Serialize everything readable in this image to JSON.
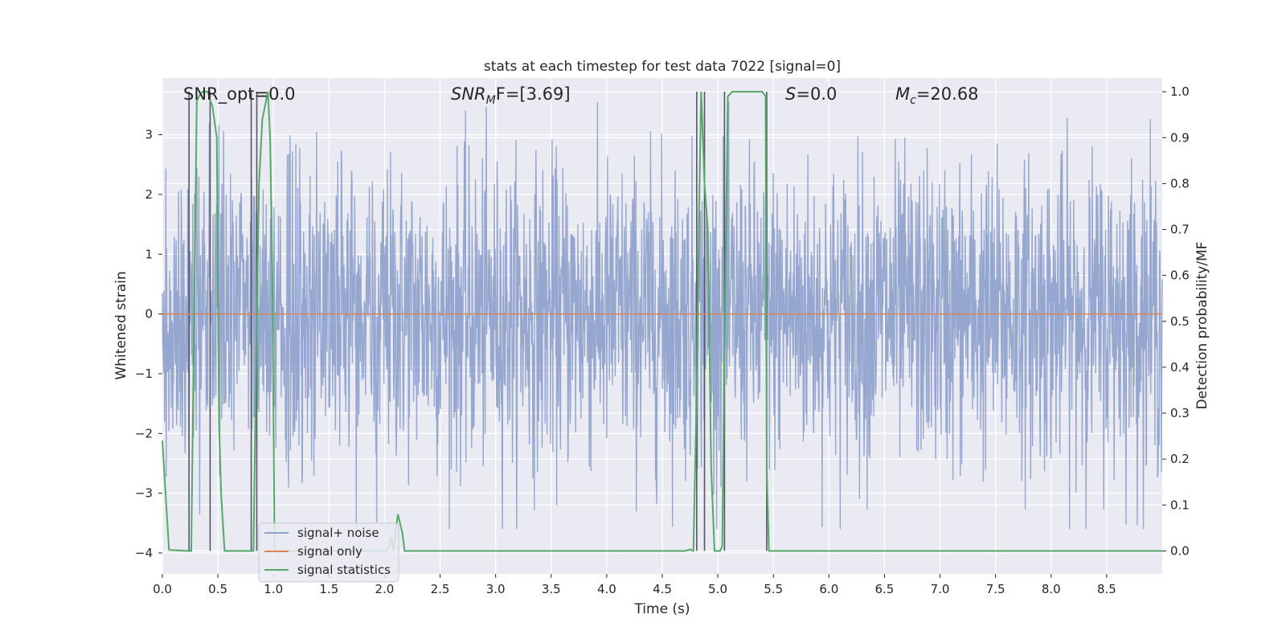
{
  "chart_data": {
    "type": "line",
    "title": "stats at each timestep for test data 7022 [signal=0]",
    "xlabel": "Time (s)",
    "ylabel": "Whitened strain",
    "y2label": "Detection probability/MF",
    "xlim": [
      0.0,
      9.0
    ],
    "ylim": [
      -4.35,
      3.95
    ],
    "y2lim": [
      -0.05,
      1.03
    ],
    "xticks": [
      "0.0",
      "0.5",
      "1.0",
      "1.5",
      "2.0",
      "2.5",
      "3.0",
      "3.5",
      "4.0",
      "4.5",
      "5.0",
      "5.5",
      "6.0",
      "6.5",
      "7.0",
      "7.5",
      "8.0",
      "8.5"
    ],
    "yticks": [
      "3",
      "2",
      "1",
      "0",
      "−1",
      "−2",
      "−3",
      "−4"
    ],
    "y2ticks": [
      "1.0",
      "0.9",
      "0.8",
      "0.7",
      "0.6",
      "0.5",
      "0.4",
      "0.3",
      "0.2",
      "0.1",
      "0.0"
    ],
    "annotations": {
      "snr_opt": "SNR_opt=0.0",
      "snr_mf_main": "SNR",
      "snr_mf_sub": "M",
      "snr_mf_rest": "F=[3.69]",
      "s_main": "S",
      "s_rest": "=0.0",
      "mc_main": "M",
      "mc_sub": "c",
      "mc_rest": "=20.68"
    },
    "series": [
      {
        "name": "signal+ noise",
        "color": "#8da0cb",
        "description": "whitened noise, approx amplitude ±3.6"
      },
      {
        "name": "signal only",
        "color": "#dd8452",
        "values": "zero line"
      },
      {
        "name": "signal statistics",
        "color": "#55a868",
        "axis": "right",
        "x": [
          0.0,
          0.06,
          0.24,
          0.26,
          0.31,
          0.33,
          0.36,
          0.41,
          0.43,
          0.45,
          0.49,
          0.51,
          0.53,
          0.56,
          0.63,
          0.73,
          0.8,
          0.82,
          0.84,
          0.87,
          0.9,
          0.95,
          0.97,
          0.99,
          1.01,
          1.05,
          1.1,
          1.2,
          1.5,
          1.8,
          2.0,
          2.02,
          2.04,
          2.06,
          2.08,
          2.12,
          2.16,
          2.18,
          2.2,
          2.4,
          3.0,
          4.0,
          4.7,
          4.75,
          4.78,
          4.81,
          4.83,
          4.85,
          4.88,
          4.91,
          4.94,
          4.97,
          5.0,
          5.02,
          5.04,
          5.06,
          5.09,
          5.13,
          5.2,
          5.3,
          5.4,
          5.43,
          5.44,
          5.46,
          5.48,
          5.52,
          5.6,
          6.0,
          7.0,
          8.0,
          9.0
        ],
        "values": [
          0.24,
          0.002,
          0.0,
          0.0,
          0.98,
          0.99,
          1.0,
          1.0,
          0.98,
          0.97,
          0.9,
          0.28,
          0.12,
          0.0,
          0.0,
          0.0,
          0.0,
          0.0,
          0.34,
          0.8,
          0.94,
          1.0,
          0.9,
          0.6,
          0.0,
          0.0,
          0.0,
          0.0,
          0.0,
          0.0,
          0.0,
          0.0,
          0.01,
          0.03,
          0.0,
          0.08,
          0.04,
          0.0,
          0.0,
          0.0,
          0.0,
          0.0,
          0.0,
          0.003,
          0.0,
          0.35,
          0.72,
          1.0,
          0.8,
          0.7,
          0.18,
          0.0,
          0.0,
          0.0,
          0.01,
          0.45,
          0.99,
          1.0,
          1.0,
          1.0,
          1.0,
          0.99,
          0.18,
          0.0,
          0.0,
          0.0,
          0.0,
          0.0,
          0.0,
          0.0,
          0.0
        ]
      }
    ],
    "vlines": [
      0.24,
      0.43,
      0.8,
      0.85,
      4.81,
      4.88,
      5.06,
      5.44
    ],
    "legend_position": "lower-left"
  }
}
